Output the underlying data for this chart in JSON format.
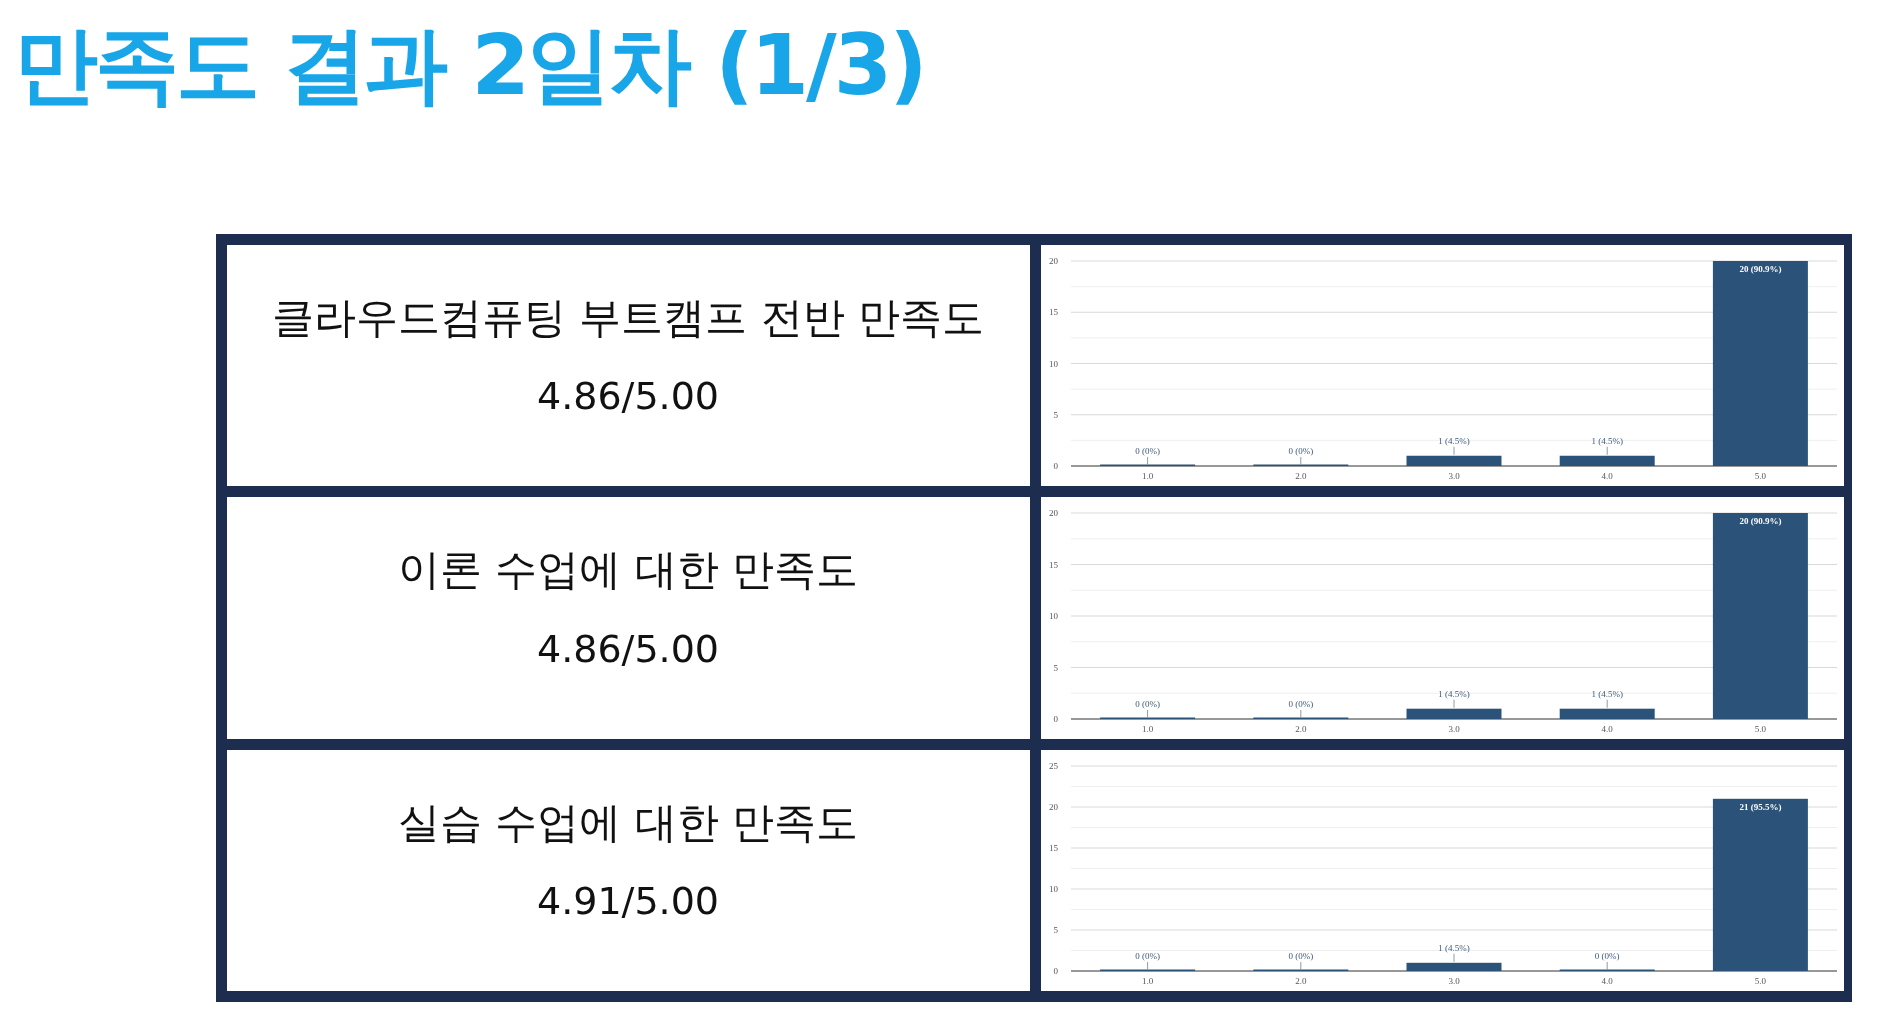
{
  "chart_data": [
    {
      "type": "other",
      "title": "만족도 결과 2일차 (1/3)"
    },
    {
      "type": "other",
      "title": "클라우드컴퓨팅 부트캠프 전반 만족도",
      "subtitle": "4.86/5.00"
    },
    {
      "type": "bar",
      "categories": [
        "1.0",
        "2.0",
        "3.0",
        "4.0",
        "5.0"
      ],
      "values": [
        0,
        0,
        1,
        1,
        20
      ],
      "value_labels": [
        "0 (0%)",
        "0 (0%)",
        "1 (4.5%)",
        "1 (4.5%)",
        "20 (90.9%)"
      ],
      "color": "#2b5279",
      "ylim": [
        0,
        20
      ],
      "yticks": [
        0,
        {
          "value": 2.5,
          "label": null
        },
        5,
        {
          "value": 7.5,
          "label": null
        },
        10,
        {
          "value": 12.5,
          "label": null
        },
        15,
        {
          "value": 17.5,
          "label": null
        },
        20
      ],
      "grid": "y"
    },
    {
      "type": "other",
      "title": "이론 수업에 대한 만족도",
      "subtitle": "4.86/5.00"
    },
    {
      "type": "bar",
      "categories": [
        "1.0",
        "2.0",
        "3.0",
        "4.0",
        "5.0"
      ],
      "values": [
        0,
        0,
        1,
        1,
        20
      ],
      "value_labels": [
        "0 (0%)",
        "0 (0%)",
        "1 (4.5%)",
        "1 (4.5%)",
        "20 (90.9%)"
      ],
      "color": "#2b5279",
      "ylim": [
        0,
        20
      ],
      "yticks": [
        0,
        {
          "value": 2.5,
          "label": null
        },
        5,
        {
          "value": 7.5,
          "label": null
        },
        10,
        {
          "value": 12.5,
          "label": null
        },
        15,
        {
          "value": 17.5,
          "label": null
        },
        20
      ],
      "grid": "y"
    },
    {
      "type": "other",
      "title": "실습 수업에 대한 만족도",
      "subtitle": "4.91/5.00"
    },
    {
      "type": "bar",
      "categories": [
        "1.0",
        "2.0",
        "3.0",
        "4.0",
        "5.0"
      ],
      "values": [
        0,
        0,
        1,
        0,
        21
      ],
      "value_labels": [
        "0 (0%)",
        "0 (0%)",
        "1 (4.5%)",
        "0 (0%)",
        "21 (95.5%)"
      ],
      "color": "#2b5279",
      "ylim": [
        0,
        25
      ],
      "yticks": [
        0,
        {
          "value": 2.5,
          "label": null
        },
        5,
        {
          "value": 7.5,
          "label": null
        },
        10,
        {
          "value": 12.5,
          "label": null
        },
        15,
        {
          "value": 17.5,
          "label": null
        },
        20,
        {
          "value": 22.5,
          "label": null
        },
        25
      ],
      "grid": "y"
    }
  ]
}
